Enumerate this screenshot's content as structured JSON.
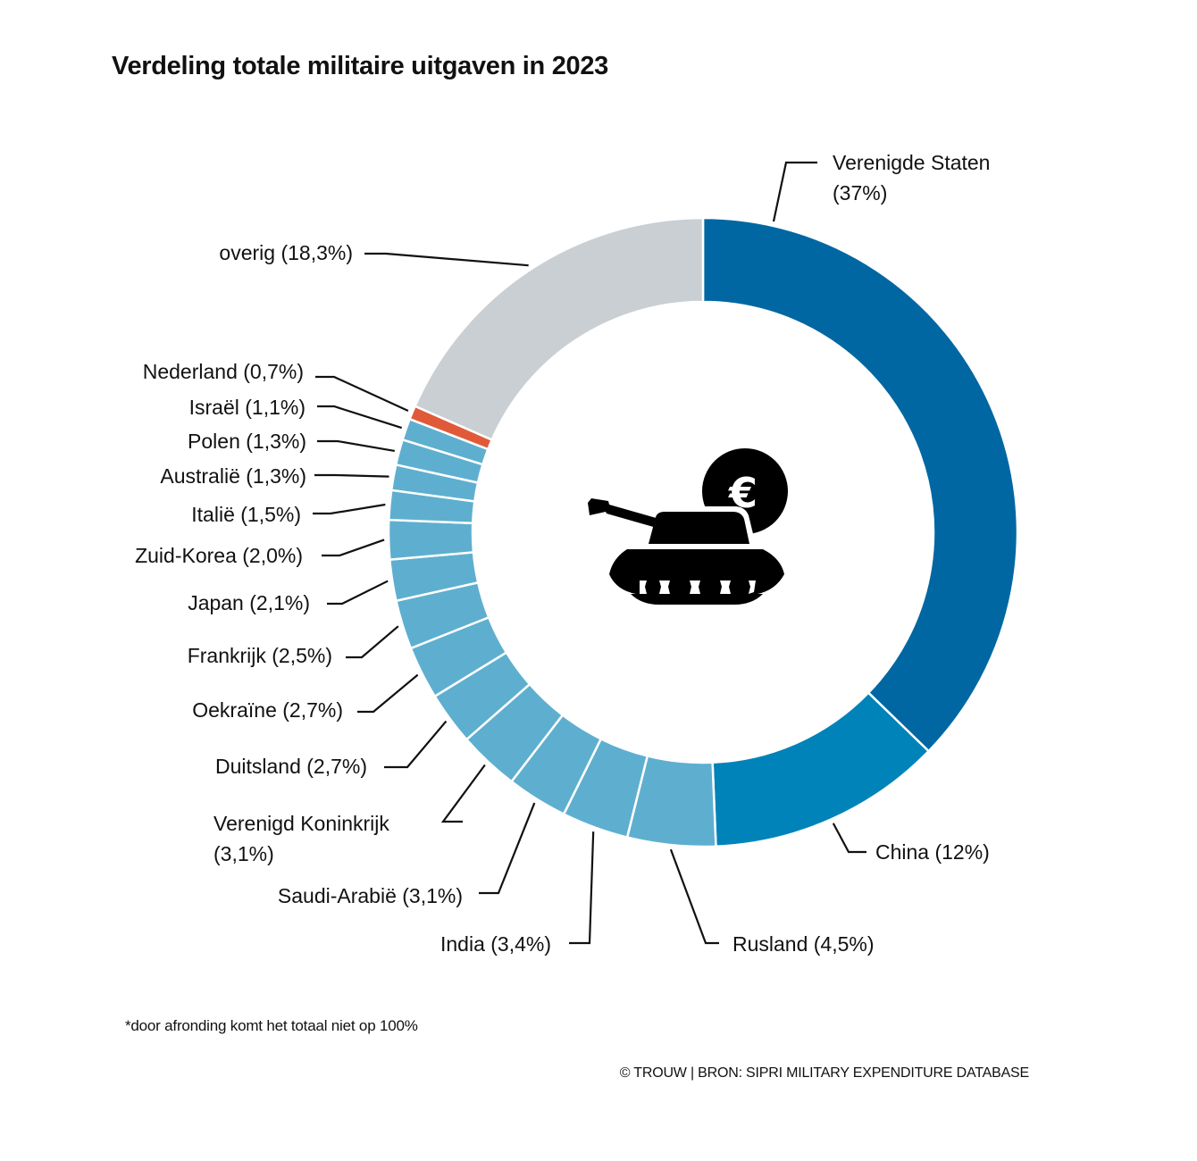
{
  "chart_data": {
    "type": "pie",
    "variant": "donut",
    "title": "Verdeling totale militaire uitgaven in 2023",
    "unit": "%",
    "slices": [
      {
        "name": "Verenigde Staten",
        "label": "Verenigde Staten",
        "label2": "(37%)",
        "value": 37,
        "color": "#0067a3"
      },
      {
        "name": "China",
        "label": "China (12%)",
        "value": 12,
        "color": "#0083b8"
      },
      {
        "name": "Rusland",
        "label": "Rusland (4,5%)",
        "value": 4.5,
        "color": "#5eafcf"
      },
      {
        "name": "India",
        "label": "India (3,4%)",
        "value": 3.4,
        "color": "#5eafcf"
      },
      {
        "name": "Saudi-Arabië",
        "label": "Saudi-Arabië (3,1%)",
        "value": 3.1,
        "color": "#5eafcf"
      },
      {
        "name": "Verenigd Koninkrijk",
        "label": "Verenigd Koninkrijk",
        "label2": "(3,1%)",
        "value": 3.1,
        "color": "#5eafcf"
      },
      {
        "name": "Duitsland",
        "label": "Duitsland (2,7%)",
        "value": 2.7,
        "color": "#5eafcf"
      },
      {
        "name": "Oekraïne",
        "label": "Oekraïne (2,7%)",
        "value": 2.7,
        "color": "#5eafcf"
      },
      {
        "name": "Frankrijk",
        "label": "Frankrijk (2,5%)",
        "value": 2.5,
        "color": "#5eafcf"
      },
      {
        "name": "Japan",
        "label": "Japan (2,1%)",
        "value": 2.1,
        "color": "#5eafcf"
      },
      {
        "name": "Zuid-Korea",
        "label": "Zuid-Korea (2,0%)",
        "value": 2.0,
        "color": "#5eafcf"
      },
      {
        "name": "Italië",
        "label": "Italië (1,5%)",
        "value": 1.5,
        "color": "#5eafcf"
      },
      {
        "name": "Australië",
        "label": "Australië (1,3%)",
        "value": 1.3,
        "color": "#5eafcf"
      },
      {
        "name": "Polen",
        "label": "Polen (1,3%)",
        "value": 1.3,
        "color": "#5eafcf"
      },
      {
        "name": "Israël",
        "label": "Israël (1,1%)",
        "value": 1.1,
        "color": "#5eafcf"
      },
      {
        "name": "Nederland",
        "label": "Nederland (0,7%)",
        "value": 0.7,
        "color": "#e05a3a"
      },
      {
        "name": "overig",
        "label": "overig (18,3%)",
        "value": 18.3,
        "color": "#cacfd3"
      }
    ],
    "center_icon": "tank-with-euro-coin-icon",
    "footnote": "*door afronding komt het totaal niet op 100%",
    "source": "© TROUW | BRON: SIPRI MILITARY EXPENDITURE DATABASE"
  }
}
